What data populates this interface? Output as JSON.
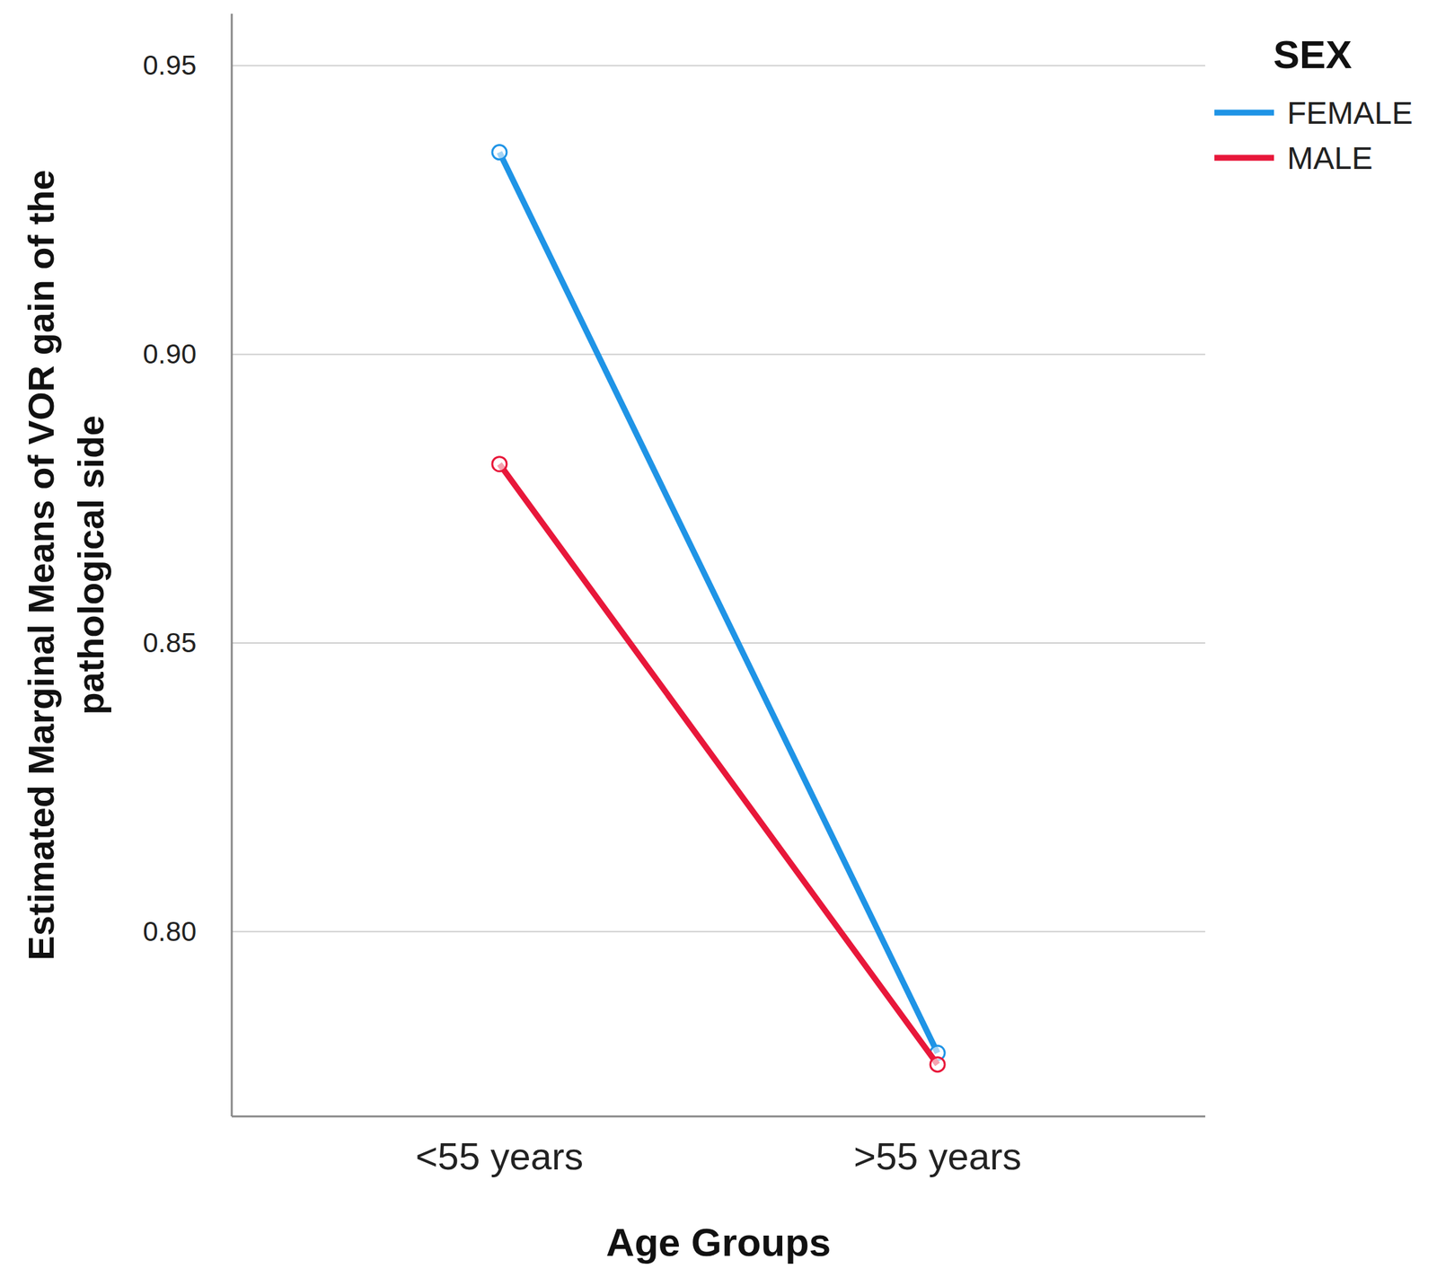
{
  "chart_data": {
    "type": "line",
    "xlabel": "Age Groups",
    "ylabel": "Estimated Marginal Means of VOR gain of the pathological side",
    "legend_title": "SEX",
    "categories": [
      "<55 years",
      ">55 years"
    ],
    "series": [
      {
        "name": "FEMALE",
        "color": "#1f94e6",
        "marker": "open-circle",
        "values": [
          0.935,
          0.779
        ]
      },
      {
        "name": "MALE",
        "color": "#e8173a",
        "marker": "open-circle",
        "values": [
          0.881,
          0.777
        ]
      }
    ],
    "ylim": [
      0.768,
      0.959
    ],
    "yticks": [
      {
        "value": 0.8,
        "label": "0.80"
      },
      {
        "value": 0.85,
        "label": "0.85"
      },
      {
        "value": 0.9,
        "label": "0.90"
      },
      {
        "value": 0.95,
        "label": "0.95"
      }
    ],
    "grid": true,
    "legend": "top-right"
  }
}
